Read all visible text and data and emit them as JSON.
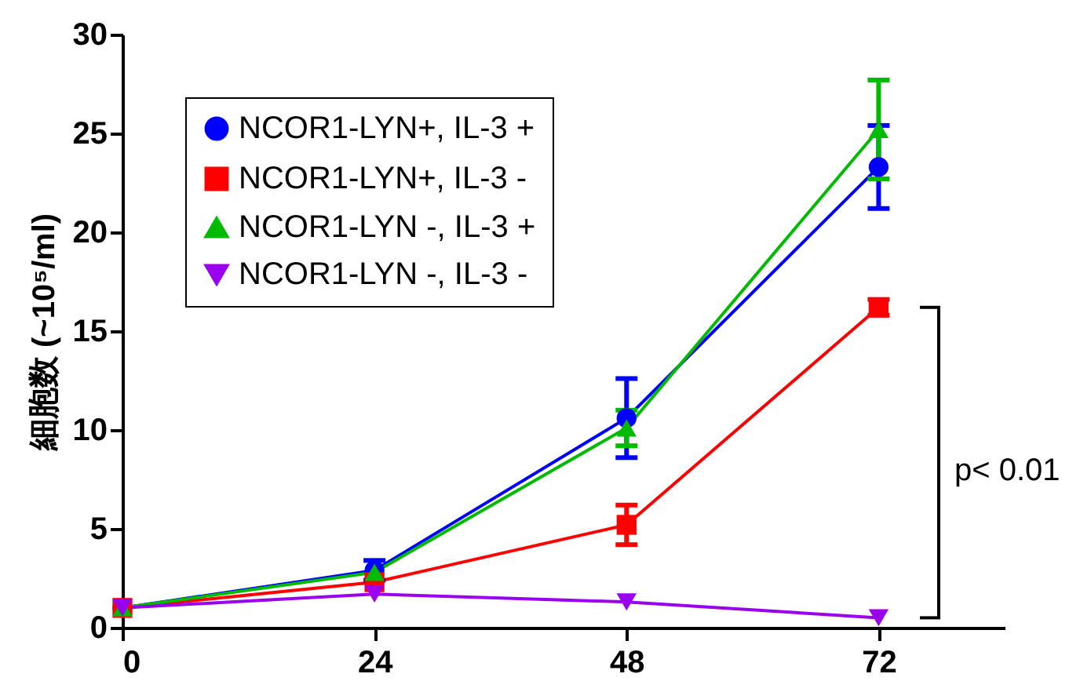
{
  "chart_data": {
    "type": "line",
    "ylabel": "細胞数 (~10⁵/ml)",
    "x": [
      0,
      24,
      48,
      72
    ],
    "xlim": [
      0,
      84
    ],
    "xticks": [
      0,
      24,
      48,
      72
    ],
    "ylim": [
      0,
      30
    ],
    "yticks": [
      0,
      5,
      10,
      15,
      20,
      25,
      30
    ],
    "grid": false,
    "legend": "top left",
    "line_style": "solid",
    "series": [
      {
        "name": "NCOR1-LYN+, IL-3 +",
        "color": "#0000ff",
        "marker": "circle",
        "values": [
          1.0,
          2.9,
          10.6,
          23.3
        ],
        "errors": [
          null,
          0.5,
          2.0,
          2.1
        ]
      },
      {
        "name": "NCOR1-LYN+, IL-3 -",
        "color": "#ff0000",
        "marker": "square",
        "values": [
          1.0,
          2.3,
          5.2,
          16.2
        ],
        "errors": [
          null,
          null,
          1.0,
          0.4
        ]
      },
      {
        "name": "NCOR1-LYN -, IL-3 +",
        "color": "#00bb00",
        "marker": "triangle",
        "values": [
          1.0,
          2.8,
          10.1,
          25.2
        ],
        "errors": [
          null,
          null,
          0.9,
          2.5
        ]
      },
      {
        "name": "NCOR1-LYN -, IL-3 -",
        "color": "#9900ee",
        "marker": "triangle-down",
        "values": [
          1.0,
          1.7,
          1.3,
          0.5
        ]
      }
    ],
    "annotations": [
      "p< 0.01"
    ]
  }
}
